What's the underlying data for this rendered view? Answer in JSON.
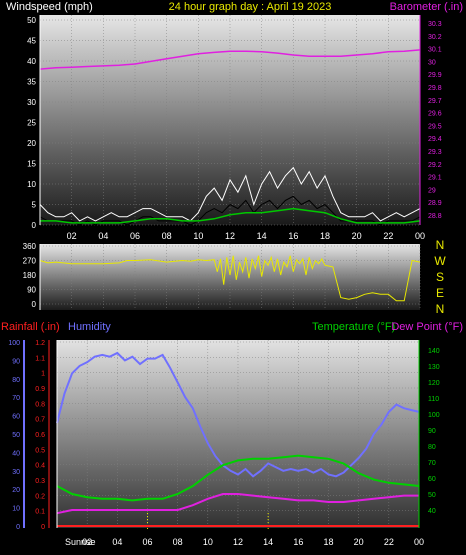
{
  "header": {
    "left_label": "Windspeed (mph)",
    "center_title": "24 hour graph day : April 19 2023",
    "right_label": "Barometer (.in)"
  },
  "lower_header": {
    "rainfall_label": "Rainfall (.in)",
    "humidity_label": "Humidity",
    "temperature_label": "Temperature (°F)",
    "dewpoint_label": "Dew Point (°F)"
  },
  "compass": [
    "N",
    "W",
    "S",
    "E",
    "N"
  ],
  "sunrise_label": "Sunrise",
  "colors": {
    "wind": "#ffffff",
    "gust": "#ffffff",
    "wind_avg": "#00c800",
    "barometer": "#e020e0",
    "direction": "#e8e800",
    "humidity": "#7070ff",
    "temperature": "#00d000",
    "dewpoint": "#e020e0",
    "rainfall": "#ff2020",
    "axis_left": "#ffffff",
    "axis_right": "#e020e0",
    "axis_temp": "#00d000",
    "axis_hum": "#7070ff",
    "axis_rain": "#ff2020",
    "bg_top": "#e6e6e6",
    "bg_bottom": "#1a1a1a"
  },
  "chart_data": [
    {
      "type": "line",
      "title": "24 hour graph day : April 19 2023",
      "x_ticks": [
        "02",
        "04",
        "06",
        "08",
        "10",
        "12",
        "14",
        "16",
        "18",
        "20",
        "22",
        "00"
      ],
      "xlim": [
        0,
        24
      ],
      "ylabel": "Windspeed (mph)",
      "ylim": [
        0,
        50
      ],
      "y_ticks": [
        "0",
        "5",
        "10",
        "15",
        "20",
        "25",
        "30",
        "35",
        "40",
        "45",
        "50"
      ],
      "y2label": "Barometer (.in)",
      "y2lim": [
        28.8,
        30.3
      ],
      "y2_ticks": [
        "28.8",
        "28.9",
        "29",
        "29.1",
        "29.2",
        "29.3",
        "29.4",
        "29.5",
        "29.6",
        "29.7",
        "29.8",
        "29.9",
        "30",
        "30.1",
        "30.2",
        "30.3"
      ],
      "series": [
        {
          "name": "Barometer",
          "axis": "right",
          "x": [
            0,
            1,
            2,
            3,
            4,
            5,
            6,
            7,
            8,
            9,
            10,
            11,
            12,
            13,
            14,
            15,
            16,
            17,
            18,
            19,
            20,
            21,
            22,
            23,
            24
          ],
          "y": [
            29.94,
            29.95,
            29.955,
            29.96,
            29.965,
            29.97,
            29.98,
            30.0,
            30.02,
            30.04,
            30.06,
            30.07,
            30.08,
            30.08,
            30.075,
            30.065,
            30.05,
            30.04,
            30.04,
            30.04,
            30.05,
            30.06,
            30.075,
            30.08,
            30.09
          ]
        },
        {
          "name": "Windspeed gust",
          "axis": "left",
          "x": [
            0,
            0.5,
            1,
            1.5,
            2,
            2.5,
            3,
            3.5,
            4,
            4.5,
            5,
            5.5,
            6,
            6.5,
            7,
            7.5,
            8,
            8.5,
            9,
            9.5,
            10,
            10.5,
            11,
            11.5,
            12,
            12.5,
            13,
            13.5,
            14,
            14.5,
            15,
            15.5,
            16,
            16.5,
            17,
            17.5,
            18,
            18.5,
            19,
            19.5,
            20,
            20.5,
            21,
            21.5,
            22,
            22.5,
            23,
            23.5,
            24
          ],
          "y": [
            5,
            3,
            2,
            2,
            3,
            1,
            2,
            1,
            2,
            3,
            2,
            2,
            3,
            4,
            4,
            3,
            2,
            2,
            2,
            1,
            3,
            7,
            9,
            6,
            11,
            8,
            12,
            5,
            10,
            13,
            9,
            12,
            14,
            10,
            13,
            9,
            12,
            7,
            3,
            2,
            2,
            2,
            3,
            1,
            2,
            3,
            2,
            3,
            4
          ]
        },
        {
          "name": "Windspeed",
          "axis": "left",
          "x": [
            0,
            0.5,
            1,
            1.5,
            2,
            2.5,
            3,
            3.5,
            4,
            4.5,
            5,
            5.5,
            6,
            6.5,
            7,
            7.5,
            8,
            8.5,
            9,
            9.5,
            10,
            10.5,
            11,
            11.5,
            12,
            12.5,
            13,
            13.5,
            14,
            14.5,
            15,
            15.5,
            16,
            16.5,
            17,
            17.5,
            18,
            18.5,
            19,
            19.5,
            20,
            20.5,
            21,
            21.5,
            22,
            22.5,
            23,
            23.5,
            24
          ],
          "y": [
            2,
            1,
            1,
            1,
            1,
            0,
            1,
            0,
            1,
            1,
            1,
            0,
            1,
            2,
            2,
            1,
            1,
            1,
            1,
            0,
            1,
            3,
            4,
            3,
            5,
            4,
            6,
            3,
            5,
            6,
            4,
            6,
            7,
            5,
            6,
            4,
            5,
            3,
            1,
            1,
            1,
            1,
            1,
            0,
            1,
            1,
            1,
            1,
            2
          ]
        },
        {
          "name": "Windspeed average",
          "axis": "left",
          "x": [
            0,
            1,
            2,
            3,
            4,
            5,
            6,
            7,
            8,
            9,
            10,
            11,
            12,
            13,
            14,
            15,
            16,
            17,
            18,
            19,
            20,
            21,
            22,
            23,
            24
          ],
          "y": [
            1,
            1,
            0.5,
            0.5,
            0.5,
            0.5,
            1,
            1.5,
            1.5,
            1,
            1,
            1.5,
            2.5,
            3,
            3,
            3.5,
            4,
            3.5,
            3,
            1.5,
            0.5,
            0.5,
            0.5,
            0.5,
            1
          ]
        }
      ]
    },
    {
      "type": "line",
      "ylim": [
        0,
        360
      ],
      "y_ticks": [
        "0",
        "90",
        "180",
        "270",
        "360"
      ],
      "xlim": [
        0,
        24
      ],
      "series": [
        {
          "name": "Wind direction",
          "x": [
            0,
            0.5,
            1,
            2,
            3,
            4,
            5,
            5.5,
            6,
            7,
            8,
            8.5,
            9,
            9.5,
            10,
            10.5,
            11,
            11.2,
            11.4,
            11.6,
            11.8,
            12,
            12.2,
            12.4,
            12.6,
            12.8,
            13,
            13.2,
            13.4,
            13.6,
            13.8,
            14,
            14.2,
            14.4,
            14.6,
            14.8,
            15,
            15.2,
            15.4,
            15.6,
            15.8,
            16,
            16.2,
            16.4,
            16.6,
            16.8,
            17,
            17.2,
            17.4,
            17.6,
            17.8,
            18,
            18.5,
            19,
            19.5,
            20,
            20.5,
            21,
            21.5,
            22,
            22.5,
            23,
            23.5,
            24
          ],
          "y": [
            270,
            255,
            260,
            250,
            250,
            250,
            255,
            270,
            270,
            275,
            260,
            265,
            270,
            265,
            275,
            270,
            275,
            200,
            280,
            120,
            290,
            180,
            300,
            150,
            260,
            200,
            290,
            160,
            280,
            220,
            300,
            170,
            270,
            240,
            290,
            200,
            280,
            180,
            260,
            230,
            300,
            200,
            275,
            250,
            280,
            180,
            290,
            220,
            270,
            250,
            280,
            240,
            230,
            40,
            30,
            40,
            60,
            70,
            60,
            60,
            20,
            20,
            270,
            260
          ]
        }
      ]
    },
    {
      "type": "line",
      "title": "",
      "xlim": [
        0,
        24
      ],
      "x_ticks": [
        "02",
        "04",
        "06",
        "08",
        "10",
        "12",
        "14",
        "16",
        "18",
        "20",
        "22",
        "00"
      ],
      "humidity_ylim": [
        0,
        100
      ],
      "humidity_ticks": [
        "0",
        "10",
        "20",
        "30",
        "40",
        "50",
        "60",
        "70",
        "80",
        "90",
        "100"
      ],
      "rain_ylim": [
        0,
        1.2
      ],
      "rain_ticks": [
        "0",
        "0.1",
        "0.2",
        "0.3",
        "0.4",
        "0.5",
        "0.6",
        "0.7",
        "0.8",
        "0.9",
        "1",
        "1.1",
        "1.2"
      ],
      "temp_ylim": [
        30,
        145
      ],
      "temp_ticks": [
        "40",
        "50",
        "60",
        "70",
        "80",
        "90",
        "100",
        "110",
        "120",
        "130",
        "140"
      ],
      "series": [
        {
          "name": "Humidity",
          "axis": "humidity",
          "x": [
            0,
            0.5,
            1,
            1.5,
            2,
            2.5,
            3,
            3.5,
            4,
            4.5,
            5,
            5.5,
            6,
            6.5,
            7,
            7.5,
            8,
            8.5,
            9,
            9.5,
            10,
            10.5,
            11,
            11.5,
            12,
            12.5,
            13,
            13.5,
            14,
            14.5,
            15,
            15.5,
            16,
            16.5,
            17,
            17.5,
            18,
            18.5,
            19,
            19.5,
            20,
            20.5,
            21,
            21.5,
            22,
            22.5,
            23,
            23.5,
            24
          ],
          "y": [
            56,
            72,
            83,
            87,
            89,
            92,
            93,
            92,
            94,
            90,
            92,
            88,
            91,
            91,
            93,
            86,
            78,
            70,
            64,
            54,
            45,
            38,
            33,
            30,
            28,
            31,
            27,
            30,
            34,
            32,
            30,
            31,
            30,
            31,
            29,
            31,
            28,
            27,
            29,
            33,
            37,
            42,
            50,
            55,
            62,
            66,
            64,
            63,
            62
          ]
        },
        {
          "name": "Temperature",
          "axis": "temp",
          "x": [
            0,
            1,
            2,
            3,
            4,
            5,
            6,
            7,
            8,
            9,
            10,
            11,
            12,
            13,
            14,
            15,
            16,
            17,
            18,
            19,
            20,
            21,
            22,
            23,
            24
          ],
          "y": [
            55,
            50,
            48,
            47,
            47,
            46,
            47,
            47,
            50,
            55,
            62,
            68,
            71,
            72,
            72,
            73,
            74,
            73,
            72,
            69,
            63,
            59,
            57,
            56,
            55
          ]
        },
        {
          "name": "Dew Point",
          "axis": "temp",
          "x": [
            0,
            1,
            2,
            3,
            4,
            5,
            6,
            7,
            8,
            9,
            10,
            11,
            12,
            13,
            14,
            15,
            16,
            17,
            18,
            19,
            20,
            21,
            22,
            23,
            24
          ],
          "y": [
            38,
            40,
            40,
            40,
            40,
            40,
            40,
            40,
            40,
            43,
            47,
            50,
            50,
            49,
            48,
            47,
            46,
            46,
            45,
            45,
            46,
            47,
            48,
            49,
            49
          ]
        },
        {
          "name": "Rainfall",
          "axis": "rain",
          "x": [
            0,
            24
          ],
          "y": [
            0,
            0
          ]
        }
      ]
    }
  ]
}
